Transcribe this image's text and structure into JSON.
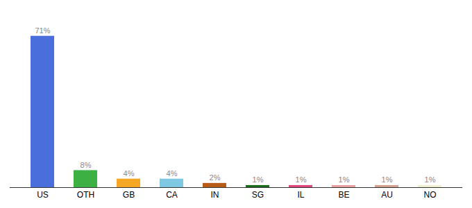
{
  "chart_data": {
    "type": "bar",
    "categories": [
      "US",
      "OTH",
      "GB",
      "CA",
      "IN",
      "SG",
      "IL",
      "BE",
      "AU",
      "NO"
    ],
    "values": [
      71,
      8,
      4,
      4,
      2,
      1,
      1,
      1,
      1,
      1
    ],
    "value_labels": [
      "71%",
      "8%",
      "4%",
      "4%",
      "2%",
      "1%",
      "1%",
      "1%",
      "1%",
      "1%"
    ],
    "colors": [
      "#4a6fdc",
      "#3cb043",
      "#f5a623",
      "#7ec8e3",
      "#b85c1a",
      "#1a6b1a",
      "#e0457b",
      "#e8a0a0",
      "#d4a090",
      "#f0f0d0"
    ],
    "ylim": [
      0,
      80
    ],
    "data_labels": true,
    "tick_labels": "x",
    "grid": false
  }
}
